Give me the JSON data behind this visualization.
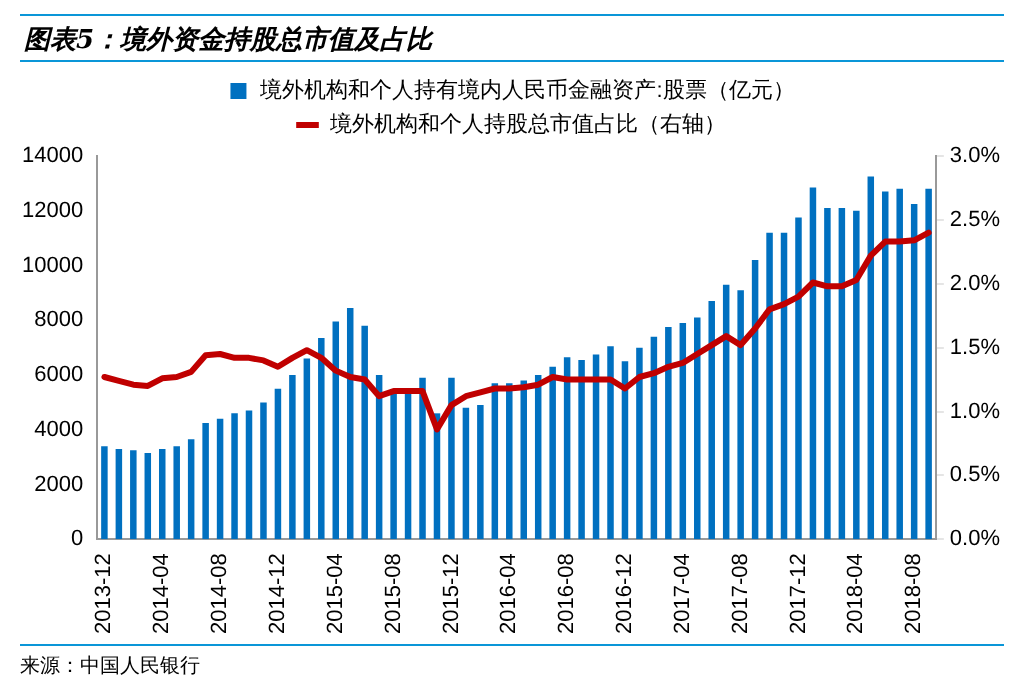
{
  "chart_data": {
    "type": "bar",
    "title": "图表5：境外资金持股总市值及占比",
    "categories": [
      "2013-12",
      null,
      null,
      null,
      "2014-04",
      null,
      null,
      null,
      "2014-08",
      null,
      null,
      null,
      "2014-12",
      null,
      null,
      null,
      "2015-04",
      null,
      null,
      null,
      "2015-08",
      null,
      null,
      null,
      "2015-12",
      null,
      null,
      null,
      "2016-04",
      null,
      null,
      null,
      "2016-08",
      null,
      null,
      null,
      "2016-12",
      null,
      null,
      null,
      "2017-04",
      null,
      null,
      null,
      "2017-08",
      null,
      null,
      null,
      "2017-12",
      null,
      null,
      null,
      "2018-04",
      null,
      null,
      null,
      "2018-08",
      null
    ],
    "series": [
      {
        "name": "境外机构和个人持有境内人民币金融资产:股票（亿元）",
        "color": "#0070c0",
        "values": [
          3400,
          3300,
          3250,
          3150,
          3300,
          3400,
          3650,
          4250,
          4400,
          4600,
          4700,
          5000,
          5500,
          6000,
          6600,
          7350,
          7950,
          8450,
          7800,
          6000,
          5400,
          5400,
          5900,
          4600,
          5900,
          4800,
          4900,
          5700,
          5700,
          5800,
          6000,
          6300,
          6650,
          6550,
          6750,
          7050,
          6500,
          7000,
          7400,
          7750,
          7900,
          8100,
          8700,
          9300,
          9100,
          10200,
          11200,
          11200,
          11750,
          12850,
          12100,
          12100,
          12000,
          13250,
          12700,
          12800,
          12250,
          12800
        ]
      },
      {
        "name": "境外机构和个人持股总市值占比（右轴）",
        "type": "line",
        "axis": "y2",
        "color": "#c00000",
        "values": [
          1.27,
          1.24,
          1.21,
          1.2,
          1.26,
          1.27,
          1.31,
          1.44,
          1.45,
          1.42,
          1.42,
          1.4,
          1.35,
          1.42,
          1.48,
          1.42,
          1.32,
          1.27,
          1.25,
          1.12,
          1.16,
          1.16,
          1.16,
          0.86,
          1.05,
          1.12,
          1.15,
          1.18,
          1.18,
          1.19,
          1.21,
          1.27,
          1.25,
          1.25,
          1.25,
          1.25,
          1.18,
          1.27,
          1.3,
          1.35,
          1.38,
          1.45,
          1.52,
          1.59,
          1.52,
          1.65,
          1.8,
          1.84,
          1.9,
          2.01,
          1.98,
          1.98,
          2.03,
          2.22,
          2.33,
          2.33,
          2.34,
          2.4
        ]
      }
    ],
    "ylim": [
      0,
      14000
    ],
    "yticks": [
      0,
      2000,
      4000,
      6000,
      8000,
      10000,
      12000,
      14000
    ],
    "y2lim": [
      0,
      3
    ],
    "y2ticks": [
      {
        "value": 0,
        "label": "0.0%"
      },
      {
        "value": 0.5,
        "label": "0.5%"
      },
      {
        "value": 1,
        "label": "1.0%"
      },
      {
        "value": 1.5,
        "label": "1.5%"
      },
      {
        "value": 2,
        "label": "2.0%"
      },
      {
        "value": 2.5,
        "label": "2.5%"
      },
      {
        "value": 3,
        "label": "3.0%"
      }
    ],
    "legend": "top",
    "grid": false,
    "marker": "none",
    "annotations": [
      "来源：中国人民银行"
    ]
  }
}
